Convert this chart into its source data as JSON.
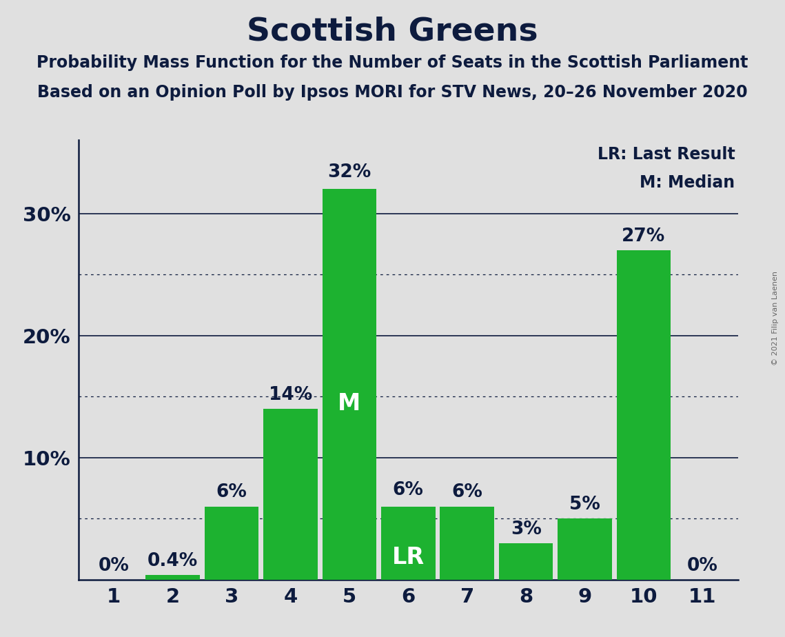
{
  "title": "Scottish Greens",
  "subtitle1": "Probability Mass Function for the Number of Seats in the Scottish Parliament",
  "subtitle2": "Based on an Opinion Poll by Ipsos MORI for STV News, 20–26 November 2020",
  "copyright": "© 2021 Filip van Laenen",
  "seats": [
    1,
    2,
    3,
    4,
    5,
    6,
    7,
    8,
    9,
    10,
    11
  ],
  "values": [
    0,
    0.4,
    6,
    14,
    32,
    6,
    6,
    3,
    5,
    27,
    0
  ],
  "labels": [
    "0%",
    "0.4%",
    "6%",
    "14%",
    "32%",
    "6%",
    "6%",
    "3%",
    "5%",
    "27%",
    "0%"
  ],
  "bar_color": "#1db230",
  "background_color": "#e0e0e0",
  "median_seat": 5,
  "lr_seat": 6,
  "median_label": "M",
  "lr_label": "LR",
  "legend_lr": "LR: Last Result",
  "legend_m": "M: Median",
  "ylim": [
    0,
    36
  ],
  "solid_grid_lines": [
    10,
    20,
    30
  ],
  "dotted_grid_lines": [
    5,
    15,
    25
  ],
  "text_color": "#0d1b3e",
  "copyright_color": "#666666"
}
